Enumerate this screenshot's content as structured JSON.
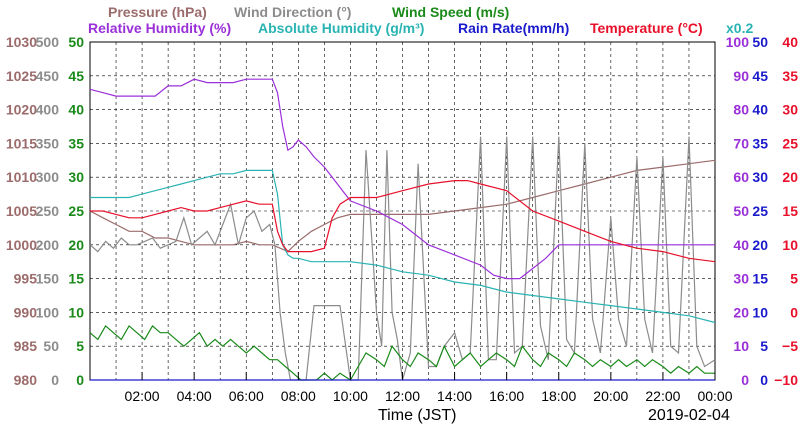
{
  "chart_data": {
    "type": "line",
    "date": "2019-02-04",
    "xlabel": "Time (JST)",
    "x_ticks": [
      "02:00",
      "04:00",
      "06:00",
      "08:00",
      "10:00",
      "12:00",
      "14:00",
      "16:00",
      "18:00",
      "20:00",
      "22:00",
      "00:00"
    ],
    "xlim": [
      0,
      24
    ],
    "legend_row1": [
      {
        "text": "Pressure (hPa)",
        "color": "#9c6b6b"
      },
      {
        "text": "Wind Direction (°)",
        "color": "#8c8c8c"
      },
      {
        "text": "Wind Speed (m/s)",
        "color": "#1a8a1a"
      }
    ],
    "legend_row2": [
      {
        "text": "Relative Humidity (%)",
        "color": "#9b30d9"
      },
      {
        "text": "Absolute Humidity (g/m³)",
        "color": "#2ab3b3"
      },
      {
        "text": "Rain Rate(mm/h)",
        "color": "#1a1acc"
      },
      {
        "text": "Temperature (°C)",
        "color": "#e8102a"
      },
      {
        "text": "x0.2",
        "color": "#2ab3b3"
      }
    ],
    "axes": {
      "pressure": {
        "color": "#9c6b6b",
        "ticks": [
          "1030",
          "1025",
          "1020",
          "1015",
          "1010",
          "1005",
          "1000",
          "995",
          "990",
          "985",
          "980"
        ],
        "ylim": [
          980,
          1030
        ]
      },
      "wind_dir": {
        "color": "#8c8c8c",
        "ticks": [
          "500",
          "450",
          "400",
          "350",
          "300",
          "250",
          "200",
          "150",
          "100",
          "50",
          "0"
        ],
        "ylim": [
          0,
          500
        ]
      },
      "wind_speed": {
        "color": "#1a8a1a",
        "ticks": [
          "50",
          "45",
          "40",
          "35",
          "30",
          "25",
          "20",
          "15",
          "10",
          "5",
          "0"
        ],
        "ylim": [
          0,
          50
        ]
      },
      "humidity": {
        "color": "#9b30d9",
        "ticks": [
          "100",
          "90",
          "80",
          "70",
          "60",
          "50",
          "40",
          "30",
          "20",
          "10",
          "0"
        ],
        "ylim": [
          0,
          100
        ]
      },
      "rain": {
        "color": "#1a1acc",
        "ticks": [
          "50",
          "45",
          "40",
          "35",
          "30",
          "25",
          "20",
          "15",
          "10",
          "5",
          "0"
        ],
        "ylim": [
          0,
          50
        ]
      },
      "temperature": {
        "color": "#e8102a",
        "ticks": [
          "40",
          "35",
          "30",
          "25",
          "20",
          "15",
          "10",
          "5",
          "0",
          "−5",
          "−10"
        ],
        "ylim": [
          -10,
          40
        ]
      }
    },
    "series": [
      {
        "name": "Pressure",
        "color": "#9c6b6b",
        "axis": "pressure",
        "x": [
          0,
          0.5,
          1,
          1.5,
          2,
          2.5,
          3,
          3.5,
          4,
          4.5,
          5,
          5.5,
          6,
          6.5,
          7,
          7.3,
          7.6,
          8,
          8.5,
          9,
          9.5,
          10,
          11,
          12,
          13,
          14,
          15,
          16,
          17,
          18,
          19,
          20,
          21,
          22,
          23,
          24
        ],
        "y": [
          1005,
          1004,
          1003,
          1002,
          1002,
          1001,
          1001,
          1000.5,
          1000,
          1000,
          1000,
          1000,
          1000.5,
          1000,
          1000,
          999.5,
          999,
          1000.5,
          1002,
          1003,
          1004,
          1004.5,
          1004.5,
          1004.5,
          1004.5,
          1005,
          1005.5,
          1006,
          1007,
          1008,
          1009,
          1010,
          1011,
          1011.5,
          1012,
          1012.5
        ]
      },
      {
        "name": "Wind Direction",
        "color": "#8c8c8c",
        "axis": "wind_dir",
        "x": [
          0,
          0.3,
          0.6,
          0.9,
          1.2,
          1.5,
          1.8,
          2.1,
          2.4,
          2.7,
          3,
          3.3,
          3.6,
          3.9,
          4.2,
          4.5,
          4.8,
          5.1,
          5.4,
          5.7,
          6,
          6.3,
          6.6,
          6.9,
          7.1,
          7.3,
          7.5,
          7.7,
          8,
          8.3,
          8.6,
          9,
          9.3,
          9.6,
          10,
          10.3,
          10.6,
          11,
          11.2,
          11.4,
          11.6,
          11.8,
          12,
          12.3,
          12.6,
          13,
          13.3,
          13.6,
          14,
          14.3,
          14.6,
          15,
          15.3,
          15.6,
          16,
          16.3,
          16.6,
          17,
          17.3,
          17.6,
          18,
          18.3,
          18.6,
          19,
          19.3,
          19.6,
          20,
          20.3,
          20.6,
          21,
          21.3,
          21.6,
          22,
          22.3,
          22.6,
          23,
          23.3,
          23.6,
          24
        ],
        "y": [
          200,
          190,
          205,
          195,
          210,
          200,
          200,
          205,
          210,
          195,
          200,
          205,
          240,
          200,
          210,
          220,
          200,
          230,
          260,
          200,
          240,
          250,
          220,
          230,
          200,
          100,
          40,
          0,
          0,
          0,
          110,
          110,
          110,
          110,
          0,
          0,
          340,
          100,
          50,
          340,
          100,
          60,
          0,
          40,
          320,
          20,
          20,
          50,
          70,
          30,
          40,
          360,
          30,
          30,
          360,
          40,
          50,
          360,
          80,
          30,
          360,
          60,
          40,
          350,
          90,
          40,
          240,
          90,
          50,
          330,
          90,
          40,
          330,
          50,
          40,
          360,
          50,
          20,
          30
        ]
      },
      {
        "name": "Wind Speed",
        "color": "#1a8a1a",
        "axis": "wind_speed",
        "x": [
          0,
          0.3,
          0.6,
          0.9,
          1.2,
          1.5,
          1.8,
          2.1,
          2.4,
          2.7,
          3,
          3.3,
          3.6,
          3.9,
          4.2,
          4.5,
          4.8,
          5.1,
          5.4,
          5.7,
          6,
          6.3,
          6.6,
          6.9,
          7.2,
          7.5,
          7.8,
          8.1,
          8.4,
          8.7,
          9,
          9.3,
          9.6,
          10,
          10.3,
          10.6,
          11,
          11.3,
          11.6,
          12,
          12.3,
          12.6,
          13,
          13.3,
          13.6,
          14,
          14.3,
          14.6,
          15,
          15.3,
          15.6,
          16,
          16.3,
          16.6,
          17,
          17.3,
          17.6,
          18,
          18.3,
          18.6,
          19,
          19.3,
          19.6,
          20,
          20.3,
          20.6,
          21,
          21.3,
          21.6,
          22,
          22.3,
          22.6,
          23,
          23.3,
          23.6,
          24
        ],
        "y": [
          7,
          6,
          8,
          7,
          6,
          8,
          7,
          6,
          8,
          7,
          7,
          6,
          5,
          6,
          7,
          5,
          6,
          5,
          6,
          5,
          4,
          5,
          4,
          3,
          3,
          2,
          1,
          0,
          0,
          0,
          1,
          0,
          1,
          0,
          2,
          4,
          3,
          2,
          5,
          3,
          2,
          4,
          3,
          2,
          5,
          2,
          3,
          4,
          2,
          3,
          4,
          3,
          2,
          5,
          3,
          2,
          4,
          3,
          2,
          4,
          3,
          2,
          3,
          2,
          3,
          2,
          3,
          2,
          3,
          2,
          1,
          2,
          1,
          2,
          1,
          1
        ]
      },
      {
        "name": "Relative Humidity",
        "color": "#9b30d9",
        "axis": "humidity",
        "x": [
          0,
          0.5,
          1,
          1.5,
          2,
          2.5,
          3,
          3.5,
          4,
          4.5,
          5,
          5.5,
          6,
          6.5,
          7,
          7.2,
          7.4,
          7.6,
          7.8,
          8,
          8.3,
          8.6,
          9,
          9.5,
          10,
          11,
          12,
          13,
          14,
          15,
          15.5,
          16,
          16.5,
          17,
          17.5,
          18,
          19,
          20,
          21,
          22,
          23,
          24
        ],
        "y": [
          86,
          85,
          84,
          84,
          84,
          84,
          87,
          87,
          89,
          88,
          88,
          88,
          89,
          89,
          89,
          85,
          75,
          68,
          69,
          71,
          69,
          66,
          63,
          58,
          53,
          50,
          46,
          40,
          37,
          34,
          31,
          30,
          30,
          33,
          36,
          40,
          40,
          40,
          40,
          40,
          40,
          40
        ]
      },
      {
        "name": "Absolute Humidity",
        "color": "#2ab3b3",
        "axis": "humidity",
        "x": [
          0,
          0.5,
          1,
          1.5,
          2,
          2.5,
          3,
          3.5,
          4,
          4.5,
          5,
          5.5,
          6,
          6.5,
          7,
          7.2,
          7.4,
          7.6,
          7.8,
          8,
          8.5,
          9,
          9.5,
          10,
          11,
          12,
          13,
          14,
          15,
          16,
          17,
          18,
          19,
          20,
          21,
          22,
          23,
          24
        ],
        "y": [
          54,
          54,
          54,
          54,
          55,
          56,
          57,
          58,
          59,
          60,
          61,
          61,
          62,
          62,
          62,
          55,
          40,
          37,
          36,
          36,
          35,
          35,
          35,
          35,
          34,
          32,
          31,
          29,
          28,
          26,
          25,
          24,
          23,
          22,
          21,
          20,
          19,
          17
        ]
      },
      {
        "name": "Rain Rate",
        "color": "#1a1acc",
        "axis": "rain",
        "x": [
          0,
          24
        ],
        "y": [
          0,
          0
        ]
      },
      {
        "name": "Temperature",
        "color": "#e8102a",
        "axis": "temperature",
        "x": [
          0,
          0.5,
          1,
          1.5,
          2,
          2.5,
          3,
          3.5,
          4,
          4.5,
          5,
          5.5,
          6,
          6.5,
          7,
          7.2,
          7.4,
          7.6,
          8,
          8.5,
          9,
          9.3,
          9.6,
          10,
          11,
          12,
          13,
          14,
          14.5,
          15,
          16,
          17,
          18,
          19,
          20,
          21,
          22,
          23,
          24
        ],
        "y": [
          15,
          15,
          14.5,
          14,
          14,
          14.5,
          15,
          15.5,
          15,
          15,
          15.5,
          16,
          16.5,
          16,
          16,
          12,
          10,
          9,
          9,
          9,
          9.5,
          14,
          16,
          17,
          17,
          18,
          19,
          19.5,
          19.5,
          19,
          18,
          15,
          13.5,
          12,
          10.5,
          9.5,
          9,
          8,
          7.5
        ]
      }
    ]
  }
}
